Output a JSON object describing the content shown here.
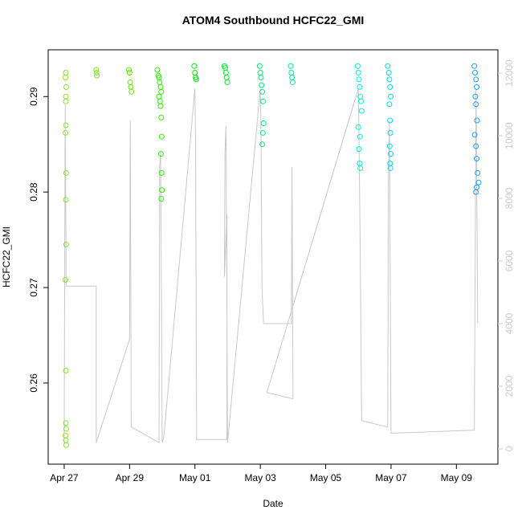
{
  "chart_data": {
    "type": "scatter",
    "title": "ATOM4 Southbound HCFC22_GMI",
    "x_label": "Date",
    "y_label": "HCFC22_GMI",
    "xlim": [
      -0.49,
      13.27
    ],
    "xticks": [
      {
        "value": 0,
        "label": "Apr 27"
      },
      {
        "value": 2,
        "label": "Apr 29"
      },
      {
        "value": 4,
        "label": "May 01"
      },
      {
        "value": 6,
        "label": "May 03"
      },
      {
        "value": 8,
        "label": "May 05"
      },
      {
        "value": 10,
        "label": "May 07"
      },
      {
        "value": 12,
        "label": "May 09"
      }
    ],
    "ylim": [
      0.2515,
      0.2949
    ],
    "yticks": [
      0.26,
      0.27,
      0.28,
      0.29
    ],
    "y2lim": [
      -487,
      12744
    ],
    "y2ticks": [
      0,
      2000,
      4000,
      6000,
      8000,
      10000,
      12000
    ],
    "y2color": "#cccccc",
    "groups": [
      {
        "color": "#88e030",
        "x": [
          0.05,
          0.04,
          0.06,
          0.05,
          0.05,
          0.05,
          0.04,
          0.06,
          0.05,
          0.06,
          0.04,
          0.05,
          0.05,
          0.06,
          0.04,
          0.05,
          0.06
        ],
        "values": [
          0.2925,
          0.292,
          0.291,
          0.29,
          0.2895,
          0.287,
          0.2862,
          0.282,
          0.2792,
          0.2745,
          0.2708,
          0.2613,
          0.2558,
          0.2552,
          0.2545,
          0.254,
          0.2535
        ]
      },
      {
        "color": "#80e020",
        "x": [
          0.98,
          0.99,
          1.0
        ],
        "values": [
          0.2928,
          0.2925,
          0.2922
        ]
      },
      {
        "color": "#60e800",
        "x": [
          1.98,
          2.0,
          2.02,
          2.04,
          2.06
        ],
        "values": [
          0.2928,
          0.2925,
          0.2915,
          0.291,
          0.2905
        ]
      },
      {
        "color": "#30ec00",
        "x": [
          2.85,
          2.88,
          2.9,
          2.92,
          2.95,
          2.97,
          2.9,
          2.93,
          2.95,
          2.97,
          2.98,
          2.96,
          2.98,
          2.99,
          2.97
        ],
        "values": [
          0.2928,
          0.2922,
          0.292,
          0.2915,
          0.291,
          0.2905,
          0.29,
          0.2895,
          0.289,
          0.2878,
          0.2858,
          0.284,
          0.282,
          0.2802,
          0.2793
        ]
      },
      {
        "color": "#00ec10",
        "x": [
          3.98,
          4.0,
          4.02,
          4.04
        ],
        "values": [
          0.2932,
          0.2925,
          0.292,
          0.2918
        ]
      },
      {
        "color": "#00ec30",
        "x": [
          4.9,
          4.93,
          4.95,
          4.97,
          4.99
        ],
        "values": [
          0.2932,
          0.293,
          0.2925,
          0.292,
          0.2915
        ]
      },
      {
        "color": "#00ec70",
        "x": [
          5.98,
          6.0,
          6.02,
          6.04,
          6.06,
          6.08,
          6.1,
          6.08,
          6.06
        ],
        "values": [
          0.2932,
          0.2925,
          0.292,
          0.2912,
          0.2905,
          0.2895,
          0.2872,
          0.2862,
          0.285
        ]
      },
      {
        "color": "#00ec90",
        "x": [
          6.93,
          6.95,
          6.97,
          6.99
        ],
        "values": [
          0.2932,
          0.2925,
          0.292,
          0.2915
        ]
      },
      {
        "color": "#00eedd",
        "x": [
          8.98,
          9.0,
          9.02,
          9.04,
          9.06,
          9.08,
          9.1,
          9.0,
          9.05,
          9.02,
          9.04,
          9.06
        ],
        "values": [
          0.2932,
          0.2925,
          0.2918,
          0.291,
          0.29,
          0.2895,
          0.2885,
          0.2868,
          0.2858,
          0.2845,
          0.283,
          0.2825
        ]
      },
      {
        "color": "#00d8ee",
        "x": [
          9.9,
          9.93,
          9.95,
          9.97,
          9.99,
          9.95,
          9.97,
          9.98,
          9.96,
          9.99,
          9.97,
          9.98
        ],
        "values": [
          0.2932,
          0.2925,
          0.2918,
          0.291,
          0.29,
          0.2892,
          0.2875,
          0.2862,
          0.2848,
          0.284,
          0.283,
          0.2825
        ]
      },
      {
        "color": "#1c9cee",
        "x": [
          12.55,
          12.57,
          12.6,
          12.62,
          12.58,
          12.6,
          12.63,
          12.56,
          12.6,
          12.62,
          12.65,
          12.68,
          12.62,
          12.6
        ],
        "values": [
          0.2932,
          0.2925,
          0.2918,
          0.291,
          0.29,
          0.2892,
          0.2875,
          0.286,
          0.2848,
          0.2835,
          0.282,
          0.281,
          0.2805,
          0.28
        ]
      }
    ],
    "line": {
      "color": "#c8c8c8",
      "axis": "y2",
      "x": [
        0,
        0.03,
        0.06,
        0.98,
        0.98,
        2.0,
        2.02,
        2.05,
        2.9,
        2.92,
        2.95,
        3.0,
        3.05,
        4.0,
        4.02,
        4.05,
        4.98,
        4.98,
        4.9,
        4.92,
        4.95,
        5.0,
        6.0,
        6.02,
        6.05,
        6.1,
        6.95,
        6.97,
        7.0,
        6.2,
        9.0,
        9.02,
        9.05,
        9.1,
        9.9,
        9.92,
        9.95,
        10.0,
        12.55,
        12.6,
        12.62,
        12.65
      ],
      "values": [
        200,
        11000,
        5200,
        5200,
        200,
        3500,
        10500,
        700,
        200,
        9000,
        9500,
        200,
        400,
        11500,
        10000,
        300,
        300,
        7500,
        5500,
        9500,
        10300,
        200,
        11500,
        10500,
        5200,
        4000,
        4000,
        9000,
        1600,
        1800,
        11500,
        10000,
        7000,
        900,
        700,
        8500,
        10500,
        500,
        600,
        11500,
        9000,
        4000
      ]
    }
  }
}
